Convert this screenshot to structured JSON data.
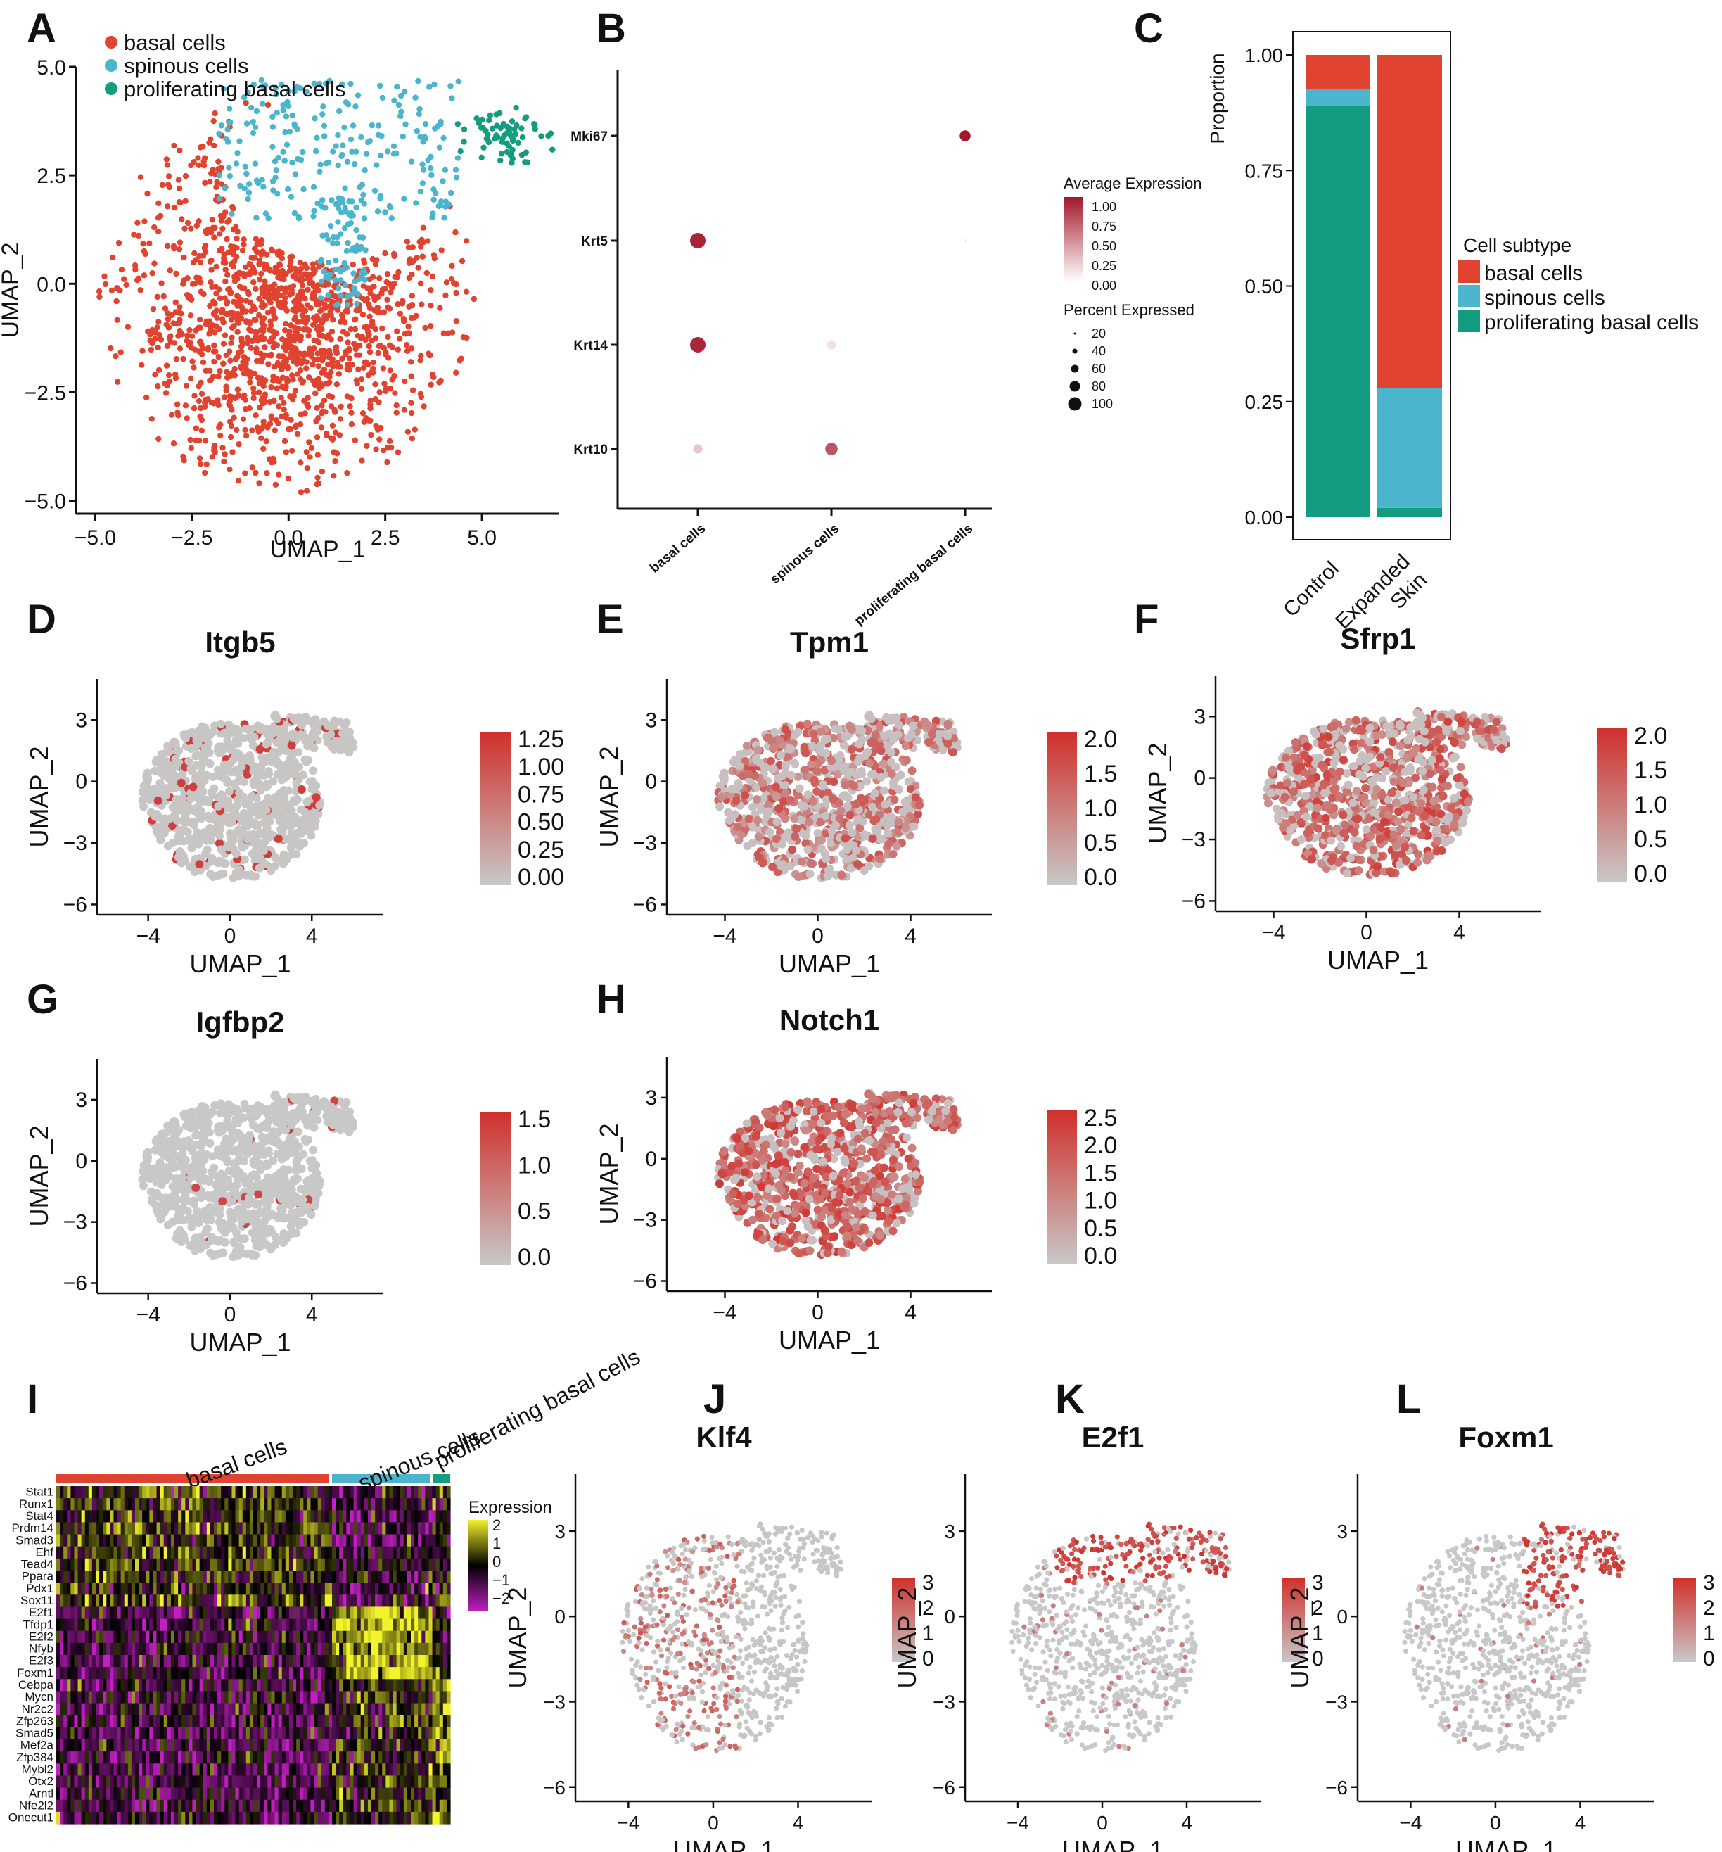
{
  "colors": {
    "basal": "#E0432F",
    "spinous": "#4AB5CC",
    "prolif": "#139C80",
    "grey": "#C8C8C8",
    "red": "#D0302B",
    "dotdark": "#A3182B"
  },
  "panels": {
    "A": {
      "label": "A",
      "xlabel": "UMAP_1",
      "ylabel": "UMAP_2",
      "xticks": [
        "−5.0",
        "−2.5",
        "0.0",
        "2.5",
        "5.0"
      ],
      "yticks": [
        "5.0",
        "2.5",
        "0.0",
        "−2.5",
        "−5.0"
      ],
      "legend": [
        "basal cells",
        "spinous cells",
        "proliferating basal cells"
      ]
    },
    "B": {
      "label": "B",
      "genes": [
        "Mki67",
        "Krt5",
        "Krt14",
        "Krt10"
      ],
      "groups": [
        "basal cells",
        "spinous cells",
        "proliferating basal cells"
      ],
      "avg_title": "Average Expression",
      "avg_ticks": [
        "1.00",
        "0.75",
        "0.50",
        "0.25",
        "0.00"
      ],
      "pct_title": "Percent Expressed",
      "pct_ticks": [
        "20",
        "40",
        "60",
        "80",
        "100"
      ]
    },
    "C": {
      "label": "C",
      "ylabel": "Proportion",
      "yticks": [
        "1.00",
        "0.75",
        "0.50",
        "0.25",
        "0.00"
      ],
      "xcats": [
        "Control",
        "Expanded\nSkin"
      ],
      "legend_title": "Cell subtype",
      "legend": [
        "basal cells",
        "spinous cells",
        "proliferating basal cells"
      ]
    },
    "D": {
      "label": "D",
      "title": "Itgb5",
      "cb": [
        "1.25",
        "1.00",
        "0.75",
        "0.50",
        "0.25",
        "0.00"
      ]
    },
    "E": {
      "label": "E",
      "title": "Tpm1",
      "cb": [
        "2.0",
        "1.5",
        "1.0",
        "0.5",
        "0.0"
      ]
    },
    "F": {
      "label": "F",
      "title": "Sfrp1",
      "cb": [
        "2.0",
        "1.5",
        "1.0",
        "0.5",
        "0.0"
      ]
    },
    "G": {
      "label": "G",
      "title": "Igfbp2",
      "cb": [
        "1.5",
        "1.0",
        "0.5",
        "0.0"
      ]
    },
    "H": {
      "label": "H",
      "title": "Notch1",
      "cb": [
        "2.5",
        "2.0",
        "1.5",
        "1.0",
        "0.5",
        "0.0"
      ]
    },
    "I": {
      "label": "I",
      "groups": [
        "basal cells",
        "spinous cells",
        "proliferating basal cells"
      ],
      "genes": [
        "Stat1",
        "Runx1",
        "Stat4",
        "Prdm14",
        "Smad3",
        "Ehf",
        "Tead4",
        "Ppara",
        "Pdx1",
        "Sox11",
        "E2f1",
        "Tfdp1",
        "E2f2",
        "Nfyb",
        "E2f3",
        "Foxm1",
        "Cebpa",
        "Mycn",
        "Nr2c2",
        "Zfp263",
        "Smad5",
        "Mef2a",
        "Zfp384",
        "Mybl2",
        "Otx2",
        "Arntl",
        "Nfe2l2",
        "Onecut1"
      ],
      "legend_title": "Expression",
      "legend_ticks": [
        "2",
        "1",
        "0",
        "−1",
        "−2"
      ]
    },
    "J": {
      "label": "J",
      "title": "Klf4",
      "cb": [
        "3",
        "2",
        "1",
        "0"
      ]
    },
    "K": {
      "label": "K",
      "title": "E2f1",
      "cb": [
        "3",
        "2",
        "1",
        "0"
      ]
    },
    "L": {
      "label": "L",
      "title": "Foxm1",
      "cb": [
        "3",
        "2",
        "1",
        "0"
      ]
    },
    "umap_axes": {
      "xlabel": "UMAP_1",
      "ylabel": "UMAP_2",
      "xticks": [
        "−4",
        "0",
        "4"
      ],
      "yticks": [
        "3",
        "0",
        "−3",
        "−6"
      ]
    }
  },
  "chart_data": [
    {
      "panel": "A",
      "type": "scatter",
      "title": "",
      "xlabel": "UMAP_1",
      "ylabel": "UMAP_2",
      "xlim": [
        -5.5,
        7
      ],
      "ylim": [
        -5.3,
        5
      ],
      "series": [
        {
          "name": "basal cells",
          "n": 1350
        },
        {
          "name": "spinous cells",
          "n": 310
        },
        {
          "name": "proliferating basal cells",
          "n": 70
        }
      ]
    },
    {
      "panel": "B",
      "type": "dot",
      "xlabel": "",
      "ylabel": "",
      "categories": [
        "basal cells",
        "spinous cells",
        "proliferating basal cells"
      ],
      "genes": [
        "Mki67",
        "Krt5",
        "Krt14",
        "Krt10"
      ],
      "avg_expression": {
        "Mki67": [
          0,
          0,
          1.0
        ],
        "Krt5": [
          0.95,
          0,
          0.02
        ],
        "Krt14": [
          0.93,
          0.08,
          0
        ],
        "Krt10": [
          0.2,
          0.72,
          0
        ]
      },
      "percent_expressed": {
        "Mki67": [
          0,
          0,
          70
        ],
        "Krt5": [
          100,
          0,
          10
        ],
        "Krt14": [
          100,
          60,
          0
        ],
        "Krt10": [
          60,
          80,
          0
        ]
      }
    },
    {
      "panel": "C",
      "type": "bar",
      "stacked": true,
      "ylabel": "Proportion",
      "categories": [
        "Control",
        "Expanded Skin"
      ],
      "ylim": [
        0,
        1
      ],
      "series": [
        {
          "name": "proliferating basal cells",
          "values": [
            0.89,
            0.02
          ]
        },
        {
          "name": "spinous cells",
          "values": [
            0.035,
            0.26
          ]
        },
        {
          "name": "basal cells",
          "values": [
            0.075,
            0.72
          ]
        }
      ]
    },
    {
      "panel": "D",
      "type": "scatter",
      "title": "Itgb5",
      "colorbar": [
        0,
        1.25
      ]
    },
    {
      "panel": "E",
      "type": "scatter",
      "title": "Tpm1",
      "colorbar": [
        0,
        2.0
      ]
    },
    {
      "panel": "F",
      "type": "scatter",
      "title": "Sfrp1",
      "colorbar": [
        0,
        2.0
      ]
    },
    {
      "panel": "G",
      "type": "scatter",
      "title": "Igfbp2",
      "colorbar": [
        0,
        1.5
      ]
    },
    {
      "panel": "H",
      "type": "scatter",
      "title": "Notch1",
      "colorbar": [
        0,
        2.5
      ]
    },
    {
      "panel": "I",
      "type": "heatmap",
      "colorbar": [
        -2,
        2
      ]
    },
    {
      "panel": "J",
      "type": "scatter",
      "title": "Klf4",
      "colorbar": [
        0,
        3
      ]
    },
    {
      "panel": "K",
      "type": "scatter",
      "title": "E2f1",
      "colorbar": [
        0,
        3
      ]
    },
    {
      "panel": "L",
      "type": "scatter",
      "title": "Foxm1",
      "colorbar": [
        0,
        3
      ]
    }
  ]
}
